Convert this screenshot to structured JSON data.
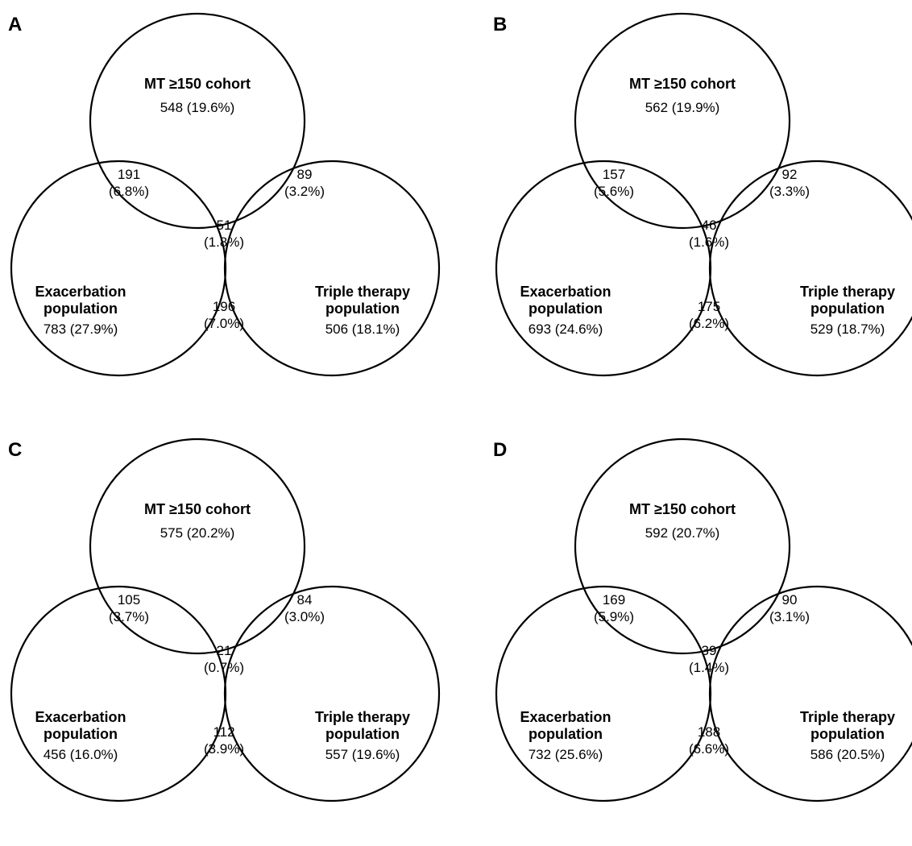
{
  "panels": [
    {
      "label": "A",
      "sets": {
        "mt": {
          "name_lines": [
            "MT ≥150 cohort"
          ],
          "value": "548 (19.6%)"
        },
        "exac": {
          "name_lines": [
            "Exacerbation",
            "population"
          ],
          "value": "783 (27.9%)"
        },
        "triple": {
          "name_lines": [
            "Triple therapy",
            "population"
          ],
          "value": "506 (18.1%)"
        }
      },
      "overlaps": {
        "mt_exac": {
          "count": "191",
          "pct": "(6.8%)"
        },
        "mt_triple": {
          "count": "89",
          "pct": "(3.2%)"
        },
        "all": {
          "count": "51",
          "pct": "(1.8%)"
        },
        "exac_triple": {
          "count": "196",
          "pct": "(7.0%)"
        }
      }
    },
    {
      "label": "B",
      "sets": {
        "mt": {
          "name_lines": [
            "MT ≥150 cohort"
          ],
          "value": "562 (19.9%)"
        },
        "exac": {
          "name_lines": [
            "Exacerbation",
            "population"
          ],
          "value": "693 (24.6%)"
        },
        "triple": {
          "name_lines": [
            "Triple therapy",
            "population"
          ],
          "value": "529 (18.7%)"
        }
      },
      "overlaps": {
        "mt_exac": {
          "count": "157",
          "pct": "(5.6%)"
        },
        "mt_triple": {
          "count": "92",
          "pct": "(3.3%)"
        },
        "all": {
          "count": "46",
          "pct": "(1.6%)"
        },
        "exac_triple": {
          "count": "175",
          "pct": "(6.2%)"
        }
      }
    },
    {
      "label": "C",
      "sets": {
        "mt": {
          "name_lines": [
            "MT ≥150 cohort"
          ],
          "value": "575 (20.2%)"
        },
        "exac": {
          "name_lines": [
            "Exacerbation",
            "population"
          ],
          "value": "456 (16.0%)"
        },
        "triple": {
          "name_lines": [
            "Triple therapy",
            "population"
          ],
          "value": "557 (19.6%)"
        }
      },
      "overlaps": {
        "mt_exac": {
          "count": "105",
          "pct": "(3.7%)"
        },
        "mt_triple": {
          "count": "84",
          "pct": "(3.0%)"
        },
        "all": {
          "count": "21",
          "pct": "(0.7%)"
        },
        "exac_triple": {
          "count": "112",
          "pct": "(3.9%)"
        }
      }
    },
    {
      "label": "D",
      "sets": {
        "mt": {
          "name_lines": [
            "MT ≥150 cohort"
          ],
          "value": "592 (20.7%)"
        },
        "exac": {
          "name_lines": [
            "Exacerbation",
            "population"
          ],
          "value": "732 (25.6%)"
        },
        "triple": {
          "name_lines": [
            "Triple therapy",
            "population"
          ],
          "value": "586 (20.5%)"
        }
      },
      "overlaps": {
        "mt_exac": {
          "count": "169",
          "pct": "(5.9%)"
        },
        "mt_triple": {
          "count": "90",
          "pct": "(3.1%)"
        },
        "all": {
          "count": "39",
          "pct": "(1.4%)"
        },
        "exac_triple": {
          "count": "188",
          "pct": "(6.6%)"
        }
      }
    }
  ]
}
